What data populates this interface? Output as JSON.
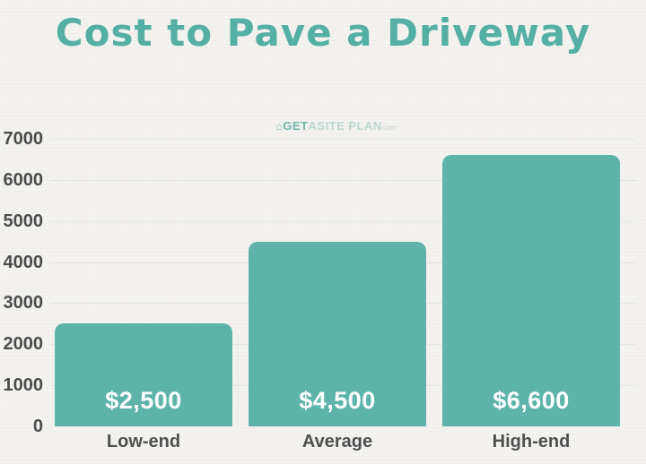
{
  "watermark": {
    "icon": "⌂",
    "get": "GET",
    "a": "A",
    "siteplan": "SITE PLAN",
    "suffix": "com"
  },
  "chart_data": {
    "type": "bar",
    "title": "Cost to Pave a Driveway",
    "categories": [
      "Low-end",
      "Average",
      "High-end"
    ],
    "values": [
      2500,
      4500,
      6600
    ],
    "value_labels": [
      "$2,500",
      "$4,500",
      "$6,600"
    ],
    "xlabel": "",
    "ylabel": "",
    "yticks": [
      0,
      1000,
      2000,
      3000,
      4000,
      5000,
      6000,
      7000
    ],
    "ylim": [
      0,
      7000
    ],
    "grid": true,
    "legend": "none",
    "colors": {
      "bar": "#5eb4a9",
      "title": "#55b0a4",
      "axis_text": "#4c4c4c",
      "value_text": "#ffffff",
      "background": "#f3f2ef"
    }
  }
}
